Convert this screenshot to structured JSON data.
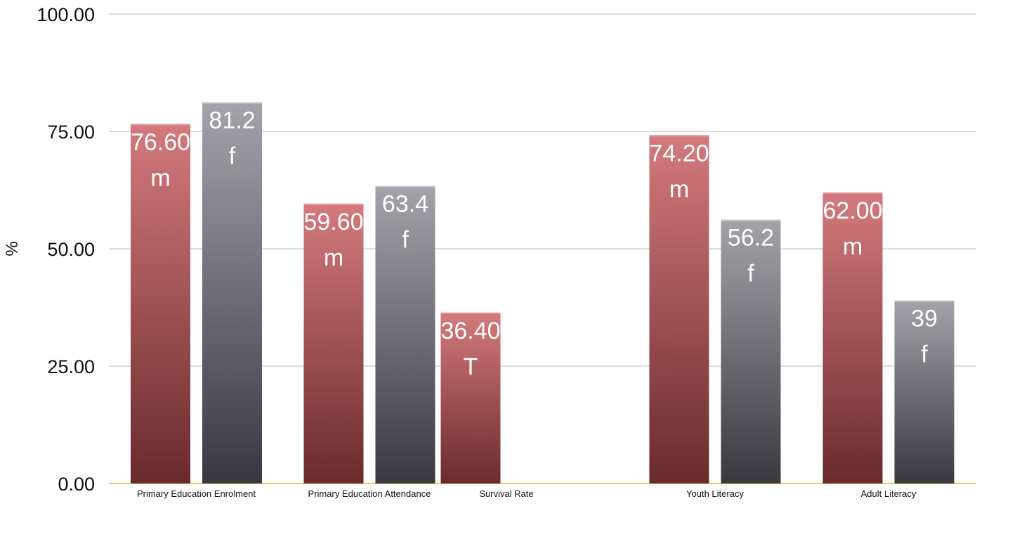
{
  "chart_data": {
    "type": "bar",
    "title": "",
    "xlabel": "",
    "ylabel": "%",
    "ylim": [
      0,
      100
    ],
    "yticks": [
      "0.00",
      "25.00",
      "50.00",
      "75.00",
      "100.00"
    ],
    "grid": true,
    "categories": [
      "Primary Education Enrolment",
      "Primary Education Attendance",
      "Survival Rate",
      "Youth Literacy",
      "Adult Literacy"
    ],
    "bars": [
      {
        "category": 0,
        "slot": 0,
        "value": 76.6,
        "label": "76.60",
        "tag": "m",
        "color": "#c96a6e"
      },
      {
        "category": 0,
        "slot": 1,
        "value": 81.2,
        "label": "81.2",
        "tag": "f",
        "color": "#8e8e96"
      },
      {
        "category": 1,
        "slot": 0,
        "value": 59.6,
        "label": "59.60",
        "tag": "m",
        "color": "#c96a6e"
      },
      {
        "category": 1,
        "slot": 1,
        "value": 63.4,
        "label": "63.4",
        "tag": "f",
        "color": "#8e8e96"
      },
      {
        "category": 2,
        "slot": 0,
        "value": 36.4,
        "label": "36.40",
        "tag": "T",
        "color": "#c96a6e"
      },
      {
        "category": 3,
        "slot": 0,
        "value": 74.2,
        "label": "74.20",
        "tag": "m",
        "color": "#c96a6e"
      },
      {
        "category": 3,
        "slot": 1,
        "value": 56.2,
        "label": "56.2",
        "tag": "f",
        "color": "#8e8e96"
      },
      {
        "category": 4,
        "slot": 0,
        "value": 62.0,
        "label": "62.00",
        "tag": "m",
        "color": "#c96a6e"
      },
      {
        "category": 4,
        "slot": 1,
        "value": 39,
        "label": "39",
        "tag": "f",
        "color": "#8e8e96"
      }
    ],
    "colors": {
      "red_top": "#d47a7e",
      "red_bottom": "#6a2a2c",
      "gray_top": "#a3a3aa",
      "gray_bottom": "#38383e",
      "grid": "#c8c8c8",
      "baseline": "#e0b830"
    }
  }
}
